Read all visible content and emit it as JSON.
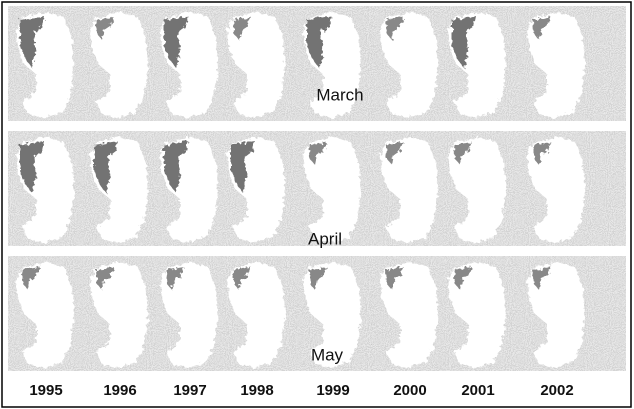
{
  "rows": [
    "March",
    "April",
    "May"
  ],
  "years": [
    "1995",
    "1996",
    "1997",
    "1998",
    "1999",
    "2000",
    "2001",
    "2002"
  ]
}
